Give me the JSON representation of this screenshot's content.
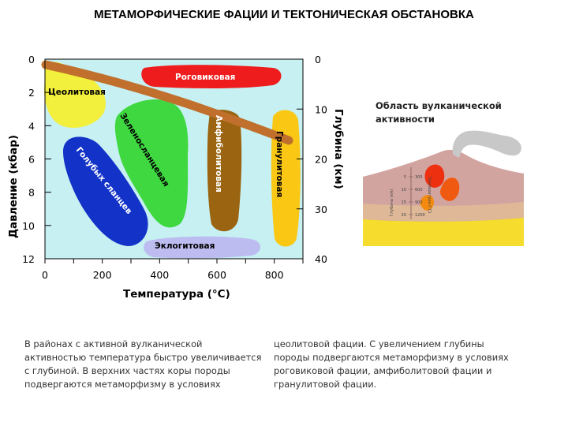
{
  "title": "МЕТАМОРФИЧЕСКИЕ ФАЦИИ И ТЕКТОНИЧЕСКАЯ ОБСТАНОВКА",
  "chart": {
    "pressure_label": "Давление (кбар)",
    "depth_label": "Глубина (км)",
    "temperature_label": "Температура (°С)",
    "pressure_ticks": [
      "0",
      "2",
      "4",
      "6",
      "8",
      "10",
      "12"
    ],
    "depth_ticks": [
      "0",
      "10",
      "20",
      "30",
      "40"
    ],
    "temperature_ticks": [
      "0",
      "200",
      "400",
      "600",
      "800"
    ],
    "facies": {
      "zeolite": "Цеолитовая",
      "hornfels": "Роговиковая",
      "greenschist": "Зеленосланцевая",
      "amphibolite": "Амфиболитовая",
      "granulite": "Гранулитовая",
      "blueschist": "Голубых сланцев",
      "eclogite": "Эклогитовая"
    }
  },
  "inset": {
    "title_lines": [
      "Область вулканической",
      "активности"
    ],
    "depth_label": "Глубина (км)",
    "temperature_label": "Температура (°С)",
    "depth_ticks": [
      "5",
      "10",
      "15",
      "20"
    ],
    "temperature_ticks": [
      "300",
      "600",
      "900",
      "1200"
    ]
  },
  "paragraph_left": [
    "В районах с активной вулканической",
    "активностью температура быстро увеличивается",
    "с глубиной. В верхних частях коры породы",
    "подвергаются метаморфизму в условиях"
  ],
  "paragraph_right": [
    "цеолитовой фации. С увеличением глубины",
    "породы подвергаются метаморфизму в условиях",
    "роговиковой фации, амфиболитовой фации и",
    "гранулитовой фации."
  ],
  "colors": {
    "background": "#c6f0f2",
    "zeolite": "#f2f03c",
    "hornfels": "#ee1c1c",
    "greenschist": "#3fd840",
    "amphibolite": "#9a6410",
    "granulite": "#fac814",
    "blueschist": "#1232c8",
    "eclogite": "#bcbcf0",
    "geotherm": "#c0702c"
  }
}
